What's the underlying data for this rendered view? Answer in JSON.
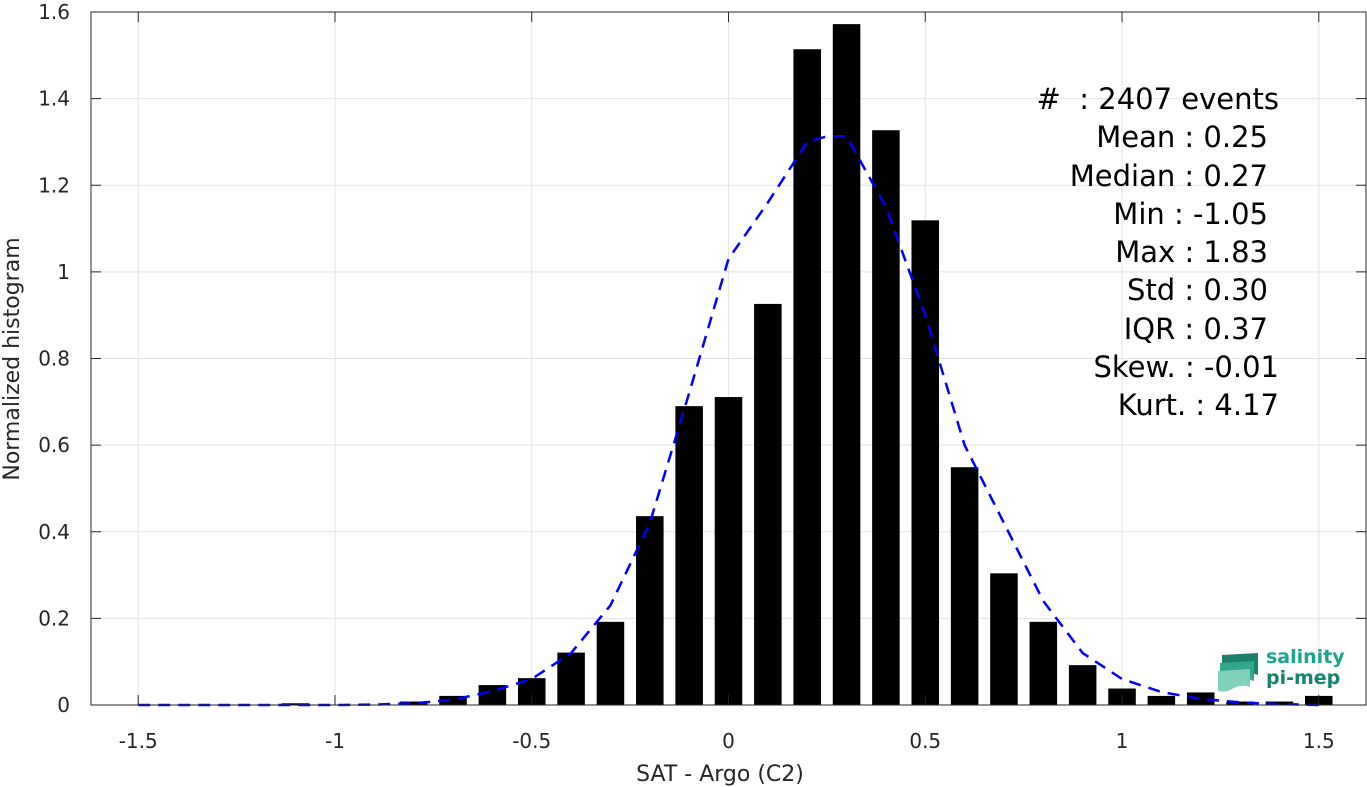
{
  "chart_data": {
    "type": "bar",
    "xlabel": "SAT - Argo (C2)",
    "ylabel": "Normalized histogram",
    "xlim": [
      -1.62,
      1.62
    ],
    "ylim": [
      0,
      1.6
    ],
    "xticks": [
      -1.5,
      -1,
      -0.5,
      0,
      0.5,
      1,
      1.5
    ],
    "xtick_labels": [
      "-1.5",
      "-1",
      "-0.5",
      "0",
      "0.5",
      "1",
      "1.5"
    ],
    "yticks": [
      0,
      0.2,
      0.4,
      0.6,
      0.8,
      1,
      1.2,
      1.4,
      1.6
    ],
    "ytick_labels": [
      "0",
      "0.2",
      "0.4",
      "0.6",
      "0.8",
      "1",
      "1.2",
      "1.4",
      "1.6"
    ],
    "grid": true,
    "bar_color": "#000000",
    "bar_width": 0.07,
    "bars": {
      "x": [
        -1.1,
        -0.8,
        -0.7,
        -0.6,
        -0.5,
        -0.4,
        -0.3,
        -0.2,
        -0.1,
        0.0,
        0.1,
        0.2,
        0.3,
        0.4,
        0.5,
        0.6,
        0.7,
        0.8,
        0.9,
        1.0,
        1.1,
        1.2,
        1.3,
        1.4,
        1.5
      ],
      "values": [
        0.004,
        0.008,
        0.021,
        0.046,
        0.062,
        0.121,
        0.192,
        0.436,
        0.69,
        0.711,
        0.926,
        1.514,
        1.572,
        1.327,
        1.119,
        0.549,
        0.304,
        0.192,
        0.092,
        0.038,
        0.021,
        0.029,
        0.008,
        0.008,
        0.021
      ]
    },
    "fit": {
      "style": "dashed",
      "color": "#0000ff",
      "x": [
        -1.5,
        -1.4,
        -1.3,
        -1.2,
        -1.1,
        -1.0,
        -0.9,
        -0.8,
        -0.7,
        -0.6,
        -0.5,
        -0.4,
        -0.3,
        -0.2,
        -0.1,
        0.0,
        0.1,
        0.2,
        0.25,
        0.3,
        0.4,
        0.5,
        0.6,
        0.7,
        0.8,
        0.9,
        1.0,
        1.1,
        1.2,
        1.3,
        1.4,
        1.5
      ],
      "y": [
        0.0,
        0.0,
        0.0,
        0.0,
        0.0,
        0.0,
        0.001,
        0.004,
        0.012,
        0.032,
        0.06,
        0.12,
        0.23,
        0.42,
        0.72,
        1.03,
        1.16,
        1.3,
        1.313,
        1.313,
        1.15,
        0.9,
        0.6,
        0.42,
        0.24,
        0.12,
        0.06,
        0.03,
        0.014,
        0.006,
        0.002,
        0.0
      ]
    }
  },
  "stats": [
    "#  : 2407 events",
    "Mean : 0.25",
    "Median : 0.27",
    "Min : -1.05",
    "Max : 1.83",
    "Std : 0.30",
    "IQR : 0.37",
    "Skew. : -0.01",
    "Kurt. : 4.17"
  ],
  "logo": {
    "line1": "salinity",
    "line2": "pi-mep"
  }
}
